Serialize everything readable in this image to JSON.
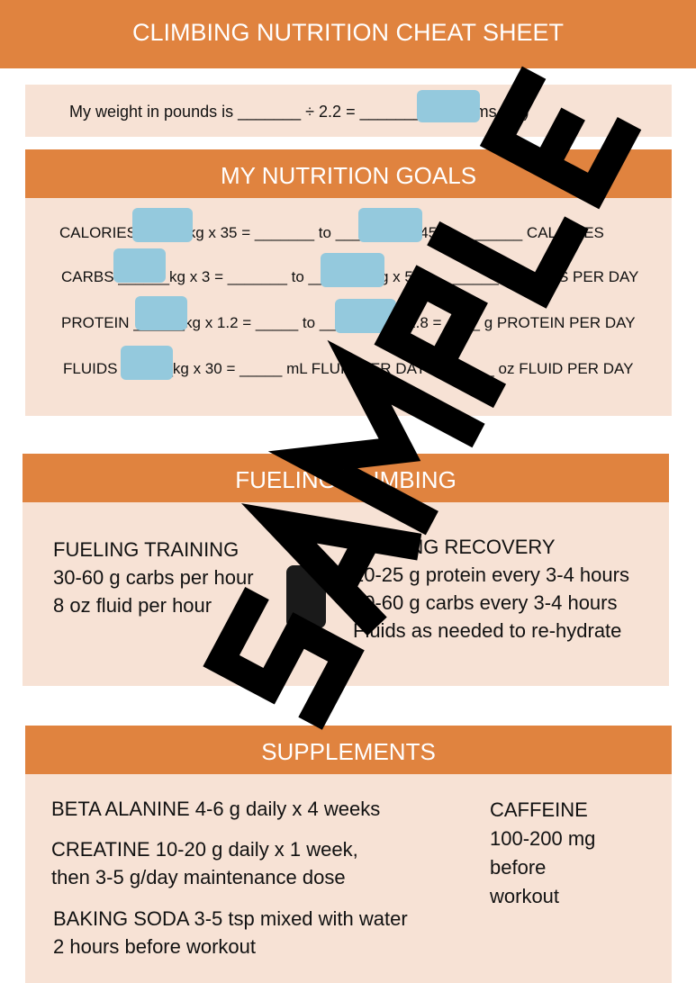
{
  "title": "CLIMBING NUTRITION CHEAT SHEET",
  "weight_line": "My weight in pounds is _______  ÷   2.2 = _______ kilograms (kg)",
  "goals": {
    "heading": "MY NUTRITION GOALS",
    "lines": [
      "CALORIES______kg x 35 = _______  to ________ x 45 = ________ CALORIES",
      "CARBS ______kg x 3 = _______ to _______ kg x 5 = ________ g CARBS PER DAY",
      "PROTEIN ______kg x 1.2 = _____ to ______ kg x 1.8 = ____ g PROTEIN PER DAY",
      "FLUIDS ______kg x 30 = _____ mL FLUID PER DAY = ______ oz FLUID PER DAY"
    ]
  },
  "fueling": {
    "heading": "FUELING CLIMBING",
    "training": [
      "FUELING TRAINING",
      "30-60 g carbs per hour",
      "8 oz fluid per hour"
    ],
    "recovery": [
      "FUELING RECOVERY",
      "20-25 g protein every 3-4 hours",
      "40-60 g carbs every 3-4 hours",
      "Fluids as needed to re-hydrate"
    ]
  },
  "supplements": {
    "heading": "SUPPLEMENTS",
    "items": [
      "BETA ALANINE 4-6 g daily x 4 weeks",
      "CREATINE 10-20 g daily x 1 week,",
      "then 3-5 g/day maintenance dose",
      "BAKING SODA 3-5 tsp mixed with water",
      "2 hours before workout"
    ],
    "caffeine": [
      "CAFFEINE",
      "100-200 mg",
      "before",
      "workout"
    ]
  },
  "watermark": "SAMPLE",
  "colors": {
    "accent": "#E0833F",
    "panel": "#F7E2D5",
    "input": "#94C9DD"
  }
}
